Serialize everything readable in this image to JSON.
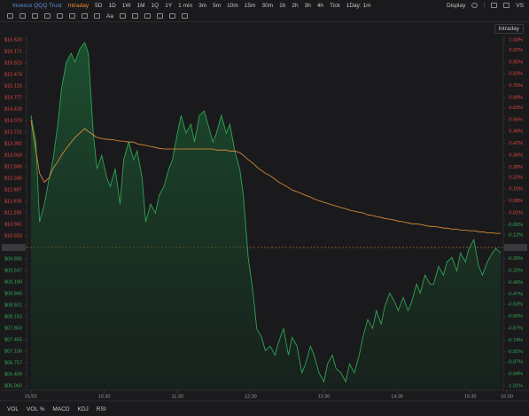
{
  "toolbar": {
    "symbol": "Invesco QQQ Trust",
    "mode": "Intraday",
    "periods": [
      "5D",
      "1D",
      "1W",
      "1M",
      "1Q",
      "1Y",
      "1 min",
      "3m",
      "5m",
      "10m",
      "15m",
      "30m",
      "1h",
      "2h",
      "3h",
      "4h",
      "Tick"
    ],
    "interval": "1Day: 1m",
    "display": "Display",
    "compare": "VS",
    "text_tool": "Aa",
    "chart_mode": "Intraday"
  },
  "indicators": [
    "VOL",
    "VOL %",
    "MACD",
    "KDJ",
    "RSI"
  ],
  "chart_data": {
    "type": "line",
    "xlim": [
      0,
      390
    ],
    "xticks": [
      {
        "value": 0,
        "label": "01/02"
      },
      {
        "value": 60,
        "label": "10:30"
      },
      {
        "value": 120,
        "label": "11:30"
      },
      {
        "value": 180,
        "label": "12:30"
      },
      {
        "value": 240,
        "label": "13:30"
      },
      {
        "value": 300,
        "label": "14:30"
      },
      {
        "value": 360,
        "label": "15:30"
      },
      {
        "value": 390,
        "label": "16:00"
      }
    ],
    "ylim": [
      6.06,
      16.52
    ],
    "yticks": [
      {
        "value": 16.52,
        "label": "$16.520"
      },
      {
        "value": 16.171,
        "label": "$16.171"
      },
      {
        "value": 15.823,
        "label": "$15.823"
      },
      {
        "value": 15.474,
        "label": "$15.474"
      },
      {
        "value": 15.125,
        "label": "$15.125"
      },
      {
        "value": 14.777,
        "label": "$14.777"
      },
      {
        "value": 14.428,
        "label": "$14.428"
      },
      {
        "value": 14.079,
        "label": "$14.079"
      },
      {
        "value": 13.731,
        "label": "$13.731"
      },
      {
        "value": 13.382,
        "label": "$13.382"
      },
      {
        "value": 13.033,
        "label": "$13.033"
      },
      {
        "value": 12.685,
        "label": "$12.685"
      },
      {
        "value": 12.336,
        "label": "$12.336"
      },
      {
        "value": 11.987,
        "label": "$11.987"
      },
      {
        "value": 11.639,
        "label": "$11.639"
      },
      {
        "value": 11.29,
        "label": "$11.290"
      },
      {
        "value": 10.941,
        "label": "$10.941"
      },
      {
        "value": 10.593,
        "label": "$10.593"
      },
      {
        "value": 9.895,
        "label": "$09.895"
      },
      {
        "value": 9.547,
        "label": "$09.547"
      },
      {
        "value": 9.198,
        "label": "$09.198"
      },
      {
        "value": 8.849,
        "label": "$08.849"
      },
      {
        "value": 8.501,
        "label": "$08.501"
      },
      {
        "value": 8.152,
        "label": "$08.152"
      },
      {
        "value": 7.803,
        "label": "$07.803"
      },
      {
        "value": 7.455,
        "label": "$07.455"
      },
      {
        "value": 7.106,
        "label": "$07.106"
      },
      {
        "value": 6.757,
        "label": "$06.757"
      },
      {
        "value": 6.409,
        "label": "$06.409"
      },
      {
        "value": 6.06,
        "label": "$06.060"
      }
    ],
    "y2lim": [
      -1.01,
      1.03
    ],
    "y2ticks": [
      {
        "value": 1.03,
        "label": "1.03%"
      },
      {
        "value": 0.97,
        "label": "0.97%"
      },
      {
        "value": 0.9,
        "label": "0.90%"
      },
      {
        "value": 0.83,
        "label": "0.83%"
      },
      {
        "value": 0.76,
        "label": "0.76%"
      },
      {
        "value": 0.69,
        "label": "0.69%"
      },
      {
        "value": 0.63,
        "label": "0.63%"
      },
      {
        "value": 0.56,
        "label": "0.56%"
      },
      {
        "value": 0.49,
        "label": "0.49%"
      },
      {
        "value": 0.42,
        "label": "0.42%"
      },
      {
        "value": 0.35,
        "label": "0.35%"
      },
      {
        "value": 0.28,
        "label": "0.28%"
      },
      {
        "value": 0.22,
        "label": "0.22%"
      },
      {
        "value": 0.15,
        "label": "0.15%"
      },
      {
        "value": 0.08,
        "label": "0.08%"
      },
      {
        "value": 0.01,
        "label": "0.01%"
      },
      {
        "value": -0.06,
        "label": "-0.06%"
      },
      {
        "value": -0.12,
        "label": "-0.12%"
      },
      {
        "value": -0.26,
        "label": "-0.26%"
      },
      {
        "value": -0.33,
        "label": "-0.33%"
      },
      {
        "value": -0.4,
        "label": "-0.40%"
      },
      {
        "value": -0.47,
        "label": "-0.47%"
      },
      {
        "value": -0.53,
        "label": "-0.53%"
      },
      {
        "value": -0.6,
        "label": "-0.60%"
      },
      {
        "value": -0.67,
        "label": "-0.67%"
      },
      {
        "value": -0.74,
        "label": "-0.74%"
      },
      {
        "value": -0.81,
        "label": "-0.81%"
      },
      {
        "value": -0.87,
        "label": "-0.87%"
      },
      {
        "value": -0.94,
        "label": "-0.94%"
      },
      {
        "value": -1.01,
        "label": "-1.01%"
      }
    ],
    "prev_close": 10.244,
    "up_color": "#e0473e",
    "down_color": "#34a853",
    "prev_close_color": "#e8913a",
    "x": [
      0,
      4,
      7,
      11,
      15,
      18,
      22,
      25,
      29,
      33,
      36,
      40,
      44,
      47,
      51,
      54,
      58,
      62,
      65,
      69,
      73,
      76,
      80,
      84,
      87,
      91,
      94,
      98,
      102,
      105,
      109,
      113,
      116,
      120,
      123,
      127,
      131,
      134,
      138,
      142,
      145,
      149,
      152,
      156,
      160,
      163,
      167,
      171,
      174,
      178,
      182,
      185,
      189,
      192,
      196,
      200,
      203,
      207,
      211,
      214,
      218,
      222,
      225,
      229,
      232,
      236,
      240,
      243,
      247,
      250,
      254,
      258,
      261,
      265,
      269,
      272,
      276,
      280,
      283,
      287,
      290,
      294,
      298,
      301,
      305,
      309,
      312,
      316,
      319,
      323,
      327,
      330,
      334,
      338,
      341,
      345,
      349,
      352,
      356,
      359,
      363,
      367,
      370,
      374,
      378,
      381,
      385
    ],
    "series": [
      {
        "color": "#2fa353",
        "area": true,
        "values": [
          14.238,
          13.433,
          11.017,
          11.553,
          12.359,
          12.896,
          13.97,
          15.043,
          15.849,
          16.117,
          15.849,
          16.252,
          16.439,
          16.117,
          13.701,
          12.627,
          13.03,
          12.359,
          12.09,
          12.627,
          11.553,
          12.896,
          13.433,
          12.896,
          13.164,
          12.359,
          11.017,
          11.553,
          11.285,
          11.822,
          12.09,
          12.627,
          12.896,
          13.701,
          14.238,
          13.701,
          13.97,
          13.433,
          14.238,
          14.372,
          13.97,
          13.433,
          13.701,
          14.238,
          13.701,
          13.97,
          13.164,
          12.627,
          11.822,
          9.943,
          8.869,
          7.795,
          7.527,
          7.124,
          7.258,
          6.99,
          7.392,
          7.795,
          6.99,
          7.527,
          7.258,
          6.453,
          6.721,
          7.258,
          6.99,
          6.453,
          6.184,
          6.721,
          6.99,
          6.587,
          6.453,
          6.184,
          6.721,
          6.453,
          6.99,
          7.527,
          8.064,
          7.795,
          8.332,
          7.929,
          8.466,
          8.869,
          8.6,
          8.332,
          8.735,
          8.332,
          8.6,
          9.137,
          8.869,
          9.406,
          9.137,
          9.137,
          9.674,
          9.406,
          9.808,
          9.943,
          9.54,
          10.077,
          9.808,
          10.211,
          10.48,
          9.674,
          9.406,
          9.808,
          10.077,
          10.211,
          10.077
        ]
      },
      {
        "color": "#e8913a",
        "area": false,
        "values": [
          14.1,
          13.16,
          12.49,
          12.22,
          12.36,
          12.63,
          12.84,
          13.03,
          13.24,
          13.43,
          13.57,
          13.7,
          13.84,
          13.75,
          13.65,
          13.57,
          13.54,
          13.51,
          13.51,
          13.49,
          13.46,
          13.46,
          13.43,
          13.43,
          13.38,
          13.35,
          13.33,
          13.3,
          13.27,
          13.24,
          13.22,
          13.22,
          13.22,
          13.22,
          13.22,
          13.22,
          13.22,
          13.22,
          13.22,
          13.22,
          13.22,
          13.22,
          13.19,
          13.19,
          13.19,
          13.16,
          13.16,
          13.11,
          13.03,
          12.9,
          12.79,
          12.68,
          12.57,
          12.49,
          12.41,
          12.31,
          12.22,
          12.14,
          12.06,
          11.98,
          11.93,
          11.87,
          11.82,
          11.77,
          11.71,
          11.66,
          11.61,
          11.58,
          11.53,
          11.5,
          11.45,
          11.42,
          11.37,
          11.34,
          11.31,
          11.29,
          11.23,
          11.21,
          11.18,
          11.15,
          11.12,
          11.1,
          11.07,
          11.04,
          11.02,
          10.99,
          10.96,
          10.96,
          10.94,
          10.91,
          10.88,
          10.88,
          10.86,
          10.83,
          10.83,
          10.8,
          10.8,
          10.77,
          10.77,
          10.75,
          10.75,
          10.72,
          10.72,
          10.69,
          10.69,
          10.67,
          10.67
        ]
      }
    ]
  }
}
